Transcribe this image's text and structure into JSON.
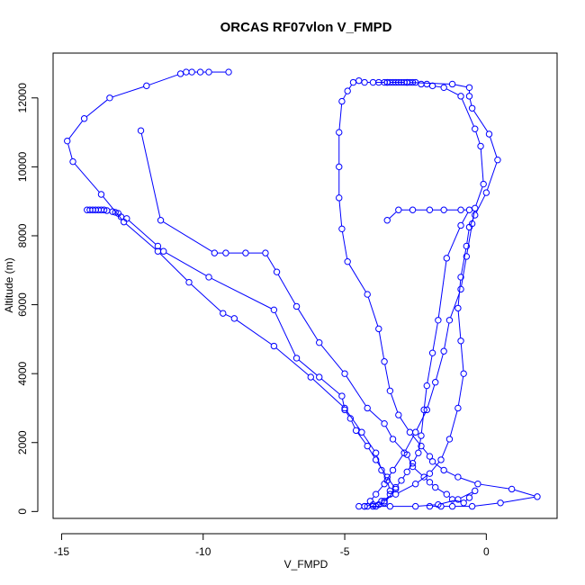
{
  "chart_data": {
    "type": "line",
    "title": "ORCAS RF07vlon V_FMPD",
    "xlabel": "V_FMPD",
    "ylabel": "Altitude (m)",
    "xlim": [
      -15.3,
      2.5
    ],
    "ylim": [
      -200,
      13300
    ],
    "x_ticks": [
      -15,
      -10,
      -5,
      0
    ],
    "y_ticks": [
      0,
      2000,
      4000,
      6000,
      8000,
      10000,
      12000
    ],
    "grid": false,
    "markers": "open-circle",
    "color": "#0000ff",
    "series": [
      {
        "x": [
          -9.1,
          -9.8,
          -10.1,
          -10.4,
          -10.6,
          -10.8,
          -12.0,
          -13.3,
          -14.2,
          -14.8,
          -14.6,
          -13.6,
          -12.8,
          -11.6,
          -10.5,
          -9.3,
          -8.9,
          -7.5,
          -6.2,
          -5.0,
          -4.4,
          -3.9,
          -3.7,
          -3.5,
          -3.4
        ],
        "y": [
          12750,
          12750,
          12750,
          12750,
          12750,
          12700,
          12350,
          12000,
          11400,
          10750,
          10150,
          9200,
          8400,
          7550,
          6650,
          5750,
          5600,
          4800,
          3900,
          3000,
          2300,
          1700,
          1200,
          900,
          600
        ]
      },
      {
        "x": [
          -14.1,
          -14.0,
          -13.9,
          -13.8,
          -13.7,
          -13.6,
          -13.5,
          -13.4,
          -13.2,
          -13.1,
          -13.0,
          -12.9,
          -12.7,
          -11.6,
          -11.4,
          -9.8,
          -7.5,
          -6.7,
          -5.9,
          -5.1,
          -5.0,
          -4.8,
          -4.6,
          -4.2,
          -3.9,
          -3.5,
          -3.2,
          -3.6,
          -3.9
        ],
        "y": [
          8750,
          8750,
          8750,
          8750,
          8750,
          8750,
          8750,
          8730,
          8700,
          8680,
          8650,
          8550,
          8500,
          7700,
          7550,
          6800,
          5850,
          4450,
          3900,
          3350,
          2950,
          2700,
          2350,
          1900,
          1500,
          1000,
          650,
          250,
          150
        ]
      },
      {
        "x": [
          -12.2,
          -11.5,
          -9.6,
          -9.2,
          -8.5,
          -7.8,
          -7.4,
          -6.7,
          -5.9,
          -5.0,
          -4.2,
          -3.6,
          -3.3,
          -2.8,
          -2.6,
          -2.2,
          -2.0,
          -1.8,
          -1.4,
          -1.2,
          -0.8,
          -0.6,
          -0.4,
          -1.0,
          -1.7,
          -2.5,
          -3.4,
          -4.2
        ],
        "y": [
          11050,
          8450,
          7500,
          7500,
          7500,
          7500,
          6950,
          5950,
          4900,
          4000,
          3000,
          2550,
          2100,
          1650,
          1300,
          1000,
          850,
          700,
          500,
          350,
          250,
          400,
          600,
          350,
          200,
          150,
          150,
          150
        ]
      },
      {
        "x": [
          -4.7,
          -4.9,
          -5.1,
          -5.2,
          -5.2,
          -5.2,
          -5.1,
          -4.9,
          -4.2,
          -3.8,
          -3.6,
          -3.4,
          -3.1,
          -2.7,
          -2.3,
          -2.0,
          -1.9,
          -1.5,
          -1.0,
          -0.3,
          0.9,
          1.8,
          0.5,
          -0.5,
          -1.2,
          -1.6,
          -2.0
        ],
        "y": [
          12450,
          12200,
          11900,
          11000,
          10000,
          9100,
          8200,
          7250,
          6300,
          5300,
          4350,
          3500,
          2800,
          2300,
          1900,
          1600,
          1450,
          1200,
          1000,
          800,
          650,
          430,
          250,
          150,
          150,
          150,
          150
        ]
      },
      {
        "x": [
          -4.5,
          -4.3,
          -4.0,
          -3.5,
          -2.8,
          -1.2,
          -0.6,
          -0.6,
          -0.5,
          0.1,
          0.4,
          0.0,
          -0.4,
          -0.6,
          -0.7,
          -0.9,
          -1.0,
          -0.9,
          -0.8,
          -1.0,
          -1.3,
          -1.6,
          -2.0,
          -2.5,
          -3.2,
          -3.7,
          -4.0,
          -4.3
        ],
        "y": [
          12500,
          12450,
          12450,
          12450,
          12450,
          12400,
          12300,
          12050,
          11700,
          10950,
          10200,
          9250,
          8600,
          8250,
          7700,
          6800,
          5900,
          4950,
          4000,
          3000,
          2100,
          1500,
          1100,
          800,
          500,
          300,
          200,
          150
        ]
      },
      {
        "x": [
          -3.8,
          -3.6,
          -3.5,
          -3.4,
          -3.3,
          -3.2,
          -3.1,
          -3.0,
          -2.9,
          -2.8,
          -2.7,
          -2.6,
          -2.5,
          -2.3,
          -2.1,
          -1.9,
          -1.5,
          -0.9,
          -0.4,
          -0.2,
          -0.1,
          -0.4,
          -0.5,
          -0.7,
          -0.9,
          -1.3,
          -1.5,
          -1.8,
          -2.1,
          -2.5,
          -2.9,
          -3.3,
          -3.6,
          -3.9,
          -4.1,
          -4.3,
          -4.5
        ],
        "y": [
          12450,
          12450,
          12450,
          12450,
          12450,
          12450,
          12450,
          12450,
          12450,
          12450,
          12450,
          12450,
          12450,
          12400,
          12400,
          12350,
          12300,
          12050,
          11100,
          10600,
          9500,
          8800,
          8350,
          7400,
          6450,
          5550,
          4650,
          3750,
          2950,
          2300,
          1700,
          1200,
          800,
          500,
          300,
          150,
          150
        ]
      },
      {
        "x": [
          -3.5,
          -3.1,
          -2.6,
          -2.0,
          -1.5,
          -0.9,
          -0.6,
          -0.9,
          -1.4,
          -1.7,
          -1.9,
          -2.1,
          -2.2,
          -2.3,
          -2.4,
          -2.6,
          -2.8,
          -3.0,
          -3.2,
          -3.4,
          -3.6,
          -3.8,
          -4.0
        ],
        "y": [
          8450,
          8750,
          8750,
          8750,
          8750,
          8750,
          8750,
          8300,
          7350,
          5550,
          4600,
          3650,
          2950,
          2200,
          1700,
          1400,
          1150,
          900,
          700,
          500,
          300,
          200,
          150
        ]
      }
    ]
  }
}
